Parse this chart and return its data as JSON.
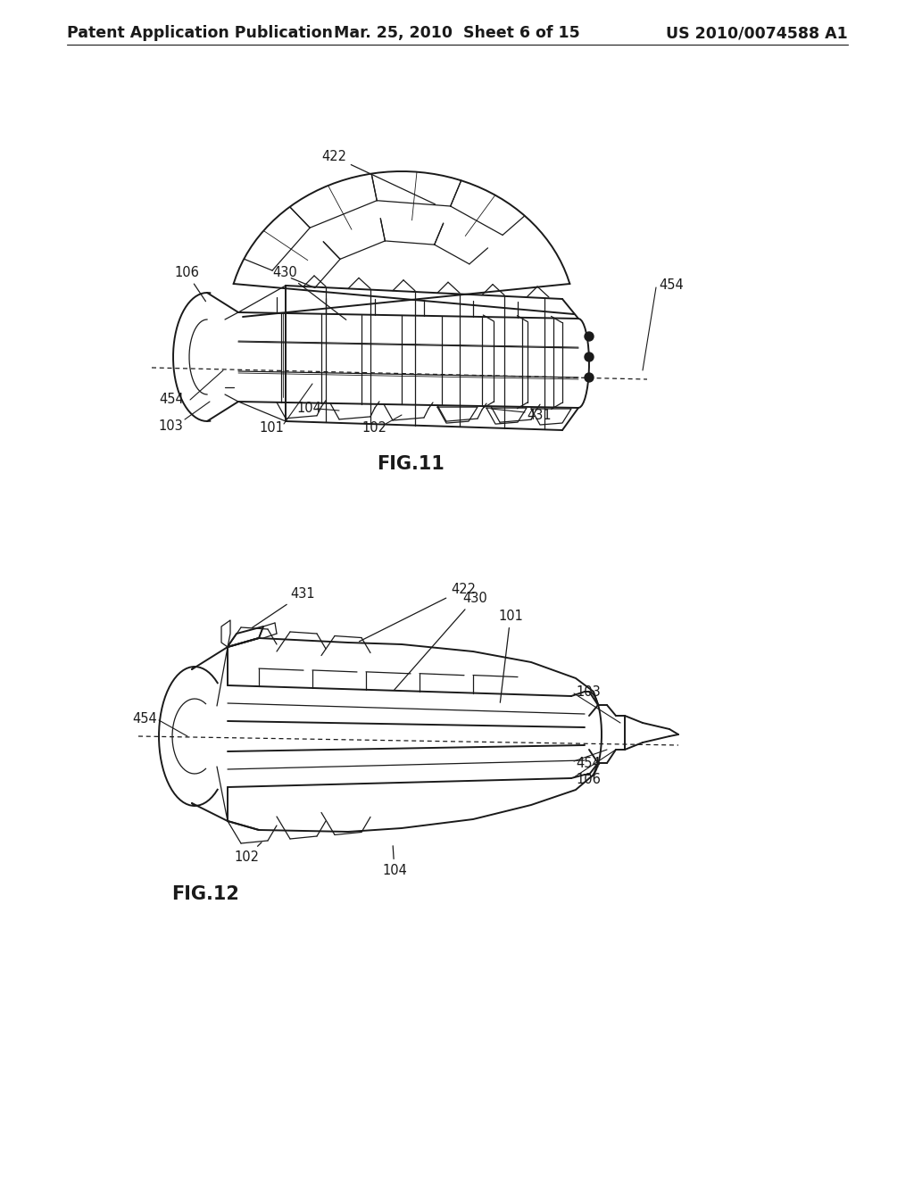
{
  "background_color": "#ffffff",
  "header_left": "Patent Application Publication",
  "header_center": "Mar. 25, 2010  Sheet 6 of 15",
  "header_right": "US 2010/0074588 A1",
  "header_fontsize": 12.5,
  "fig11_label": "FIG.11",
  "fig12_label": "FIG.12",
  "line_color": "#1a1a1a",
  "label_fontsize": 10.5,
  "fig_label_fontsize": 15
}
